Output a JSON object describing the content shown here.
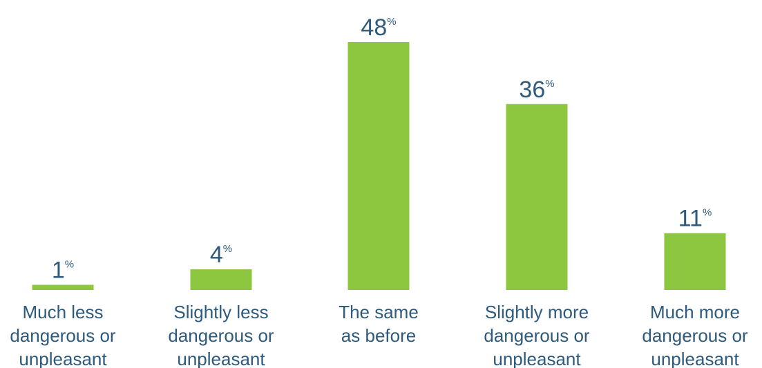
{
  "chart_data": {
    "type": "bar",
    "categories": [
      [
        "Much less",
        "dangerous or",
        "unpleasant"
      ],
      [
        "Slightly less",
        "dangerous or",
        "unpleasant"
      ],
      [
        "The same",
        "as before"
      ],
      [
        "Slightly more",
        "dangerous or",
        "unpleasant"
      ],
      [
        "Much more",
        "dangerous or",
        "unpleasant"
      ]
    ],
    "values": [
      1,
      4,
      48,
      36,
      11
    ],
    "value_suffix": "%",
    "ylim": [
      0,
      48
    ],
    "grid": false,
    "title": "",
    "xlabel": "",
    "ylabel": ""
  },
  "colors": {
    "bar": "#8dc63f",
    "text": "#2e5a7c"
  }
}
